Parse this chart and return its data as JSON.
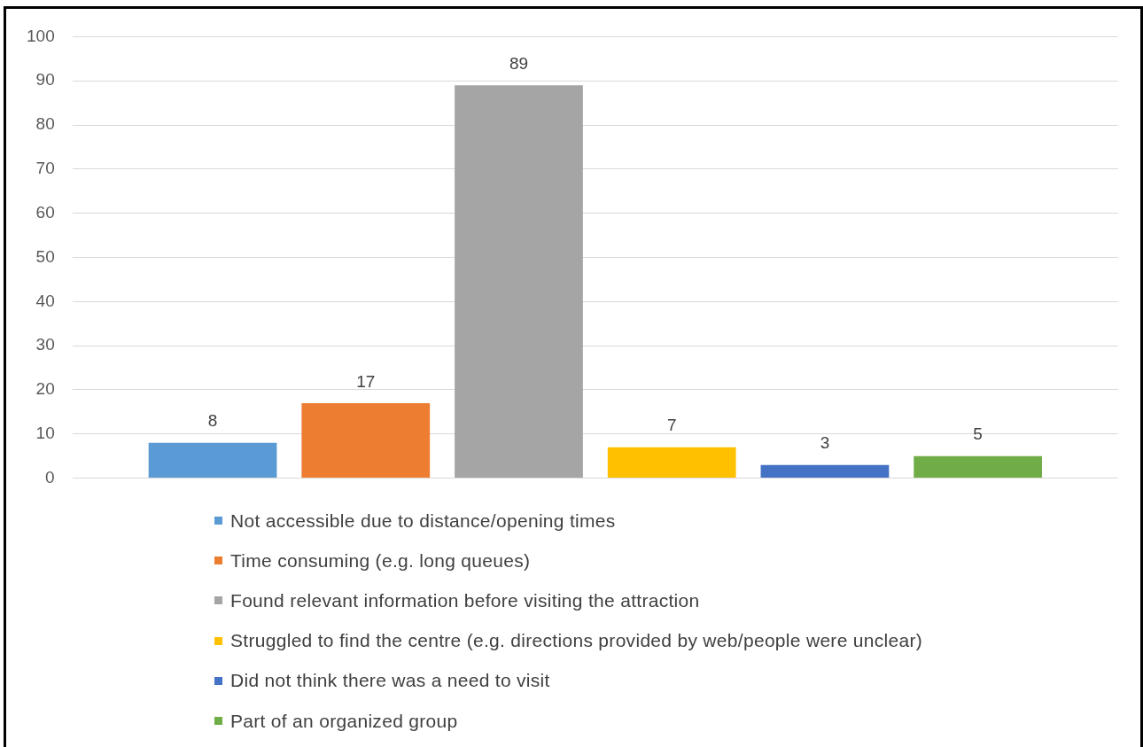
{
  "chart_data": {
    "type": "bar",
    "categories": [
      null
    ],
    "series": [
      {
        "name": "Not accessible due to distance/opening times",
        "color": "#5b9bd5",
        "values": [
          8
        ]
      },
      {
        "name": "Time consuming (e.g. long queues)",
        "color": "#ed7d31",
        "values": [
          17
        ]
      },
      {
        "name": "Found relevant information before visiting the attraction",
        "color": "#a5a5a5",
        "values": [
          89
        ]
      },
      {
        "name": "Struggled to find the centre (e.g. directions provided by web/people were unclear)",
        "color": "#ffc000",
        "values": [
          7
        ]
      },
      {
        "name": "Did not think there was a need to visit",
        "color": "#4472c4",
        "values": [
          3
        ]
      },
      {
        "name": "Part of an organized group",
        "color": "#70ad47",
        "values": [
          5
        ]
      }
    ],
    "ylim": [
      0,
      100
    ],
    "yticks": [
      0,
      10,
      20,
      30,
      40,
      50,
      60,
      70,
      80,
      90,
      100
    ],
    "grid": "y",
    "legend": "bottom",
    "data_labels": true,
    "tick_labels": "y"
  }
}
